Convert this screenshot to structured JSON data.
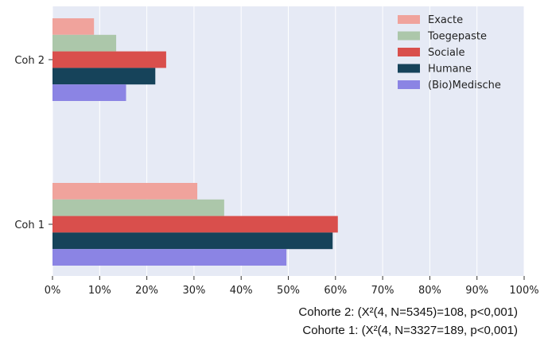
{
  "chart_data": {
    "type": "bar",
    "orientation": "horizontal",
    "categories": [
      "Coh 2",
      "Coh 1"
    ],
    "series": [
      {
        "name": "Exacte",
        "color": "#f0a39c",
        "values": [
          8.8,
          30.7
        ]
      },
      {
        "name": "Toegepaste",
        "color": "#acc7aa",
        "values": [
          13.5,
          36.4
        ]
      },
      {
        "name": "Sociale",
        "color": "#d94f4c",
        "values": [
          24.1,
          60.5
        ]
      },
      {
        "name": "Humane",
        "color": "#16435a",
        "values": [
          21.8,
          59.4
        ]
      },
      {
        "name": "(Bio)Medische",
        "color": "#8b84e4",
        "values": [
          15.6,
          49.6
        ]
      }
    ],
    "xlim": [
      0,
      100
    ],
    "xticks": [
      "0%",
      "10%",
      "20%",
      "30%",
      "40%",
      "50%",
      "60%",
      "70%",
      "80%",
      "90%",
      "100%"
    ],
    "grid": true,
    "legend_position": "top-right",
    "background": "#e6eaf5"
  },
  "notes": {
    "cohort2": "Cohorte 2: (X²(4, N=5345)=108, p<0,001)",
    "cohort1": "Cohorte 1: (X²(4, N=3327=189, p<0,001)"
  }
}
